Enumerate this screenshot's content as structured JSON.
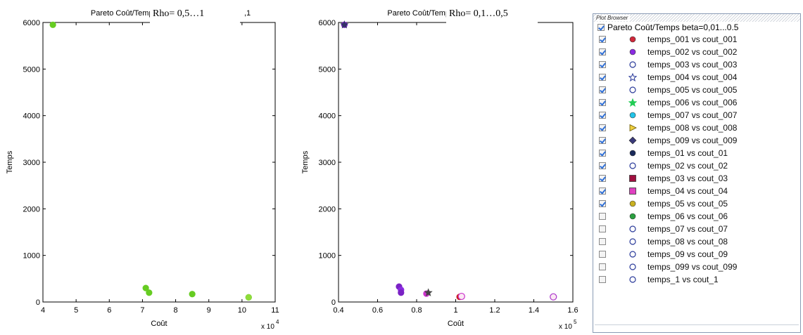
{
  "chart_data": [
    {
      "type": "scatter",
      "title": "Pareto Coût/Temps",
      "overlay_label": "Rho= 0,5…1",
      "title_tail": ",1",
      "xlabel": "Coût",
      "ylabel": "Temps",
      "x_exponent_label": "x 10",
      "x_exponent_power": "4",
      "xlim": [
        4,
        11
      ],
      "ylim": [
        0,
        6000
      ],
      "xticks": [
        "4",
        "5",
        "6",
        "7",
        "8",
        "9",
        "10",
        "11"
      ],
      "yticks": [
        "0",
        "1000",
        "2000",
        "3000",
        "4000",
        "5000",
        "6000"
      ],
      "points": [
        {
          "x": 4.3,
          "y": 5950,
          "color": "#66cc22"
        },
        {
          "x": 7.1,
          "y": 300,
          "color": "#66cc22"
        },
        {
          "x": 7.2,
          "y": 200,
          "color": "#66cc22"
        },
        {
          "x": 8.5,
          "y": 170,
          "color": "#66cc22"
        },
        {
          "x": 10.2,
          "y": 100,
          "color": "#2a9d3a"
        },
        {
          "x": 10.2,
          "y": 100,
          "color": "#8fdc3a"
        }
      ]
    },
    {
      "type": "scatter",
      "title": "Pareto Coût/Temps",
      "overlay_label": "Rho= 0,1…0,5",
      "xlabel": "Coût",
      "ylabel": "Temps",
      "x_exponent_label": "x 10",
      "x_exponent_power": "5",
      "xlim": [
        0.4,
        1.6
      ],
      "ylim": [
        0,
        6000
      ],
      "xticks": [
        "0.4",
        "0.6",
        "0.8",
        "1",
        "1.2",
        "1.4",
        "1.6"
      ],
      "yticks": [
        "0",
        "1000",
        "2000",
        "3000",
        "4000",
        "5000",
        "6000"
      ],
      "points": [
        {
          "x": 0.43,
          "y": 5950,
          "color": "#7a22c4",
          "shape": "circle"
        },
        {
          "x": 0.43,
          "y": 5950,
          "color": "#333366",
          "shape": "star"
        },
        {
          "x": 0.71,
          "y": 330,
          "color": "#7a22c4",
          "shape": "circle"
        },
        {
          "x": 0.72,
          "y": 260,
          "color": "#8a2be2",
          "shape": "circle"
        },
        {
          "x": 0.72,
          "y": 200,
          "color": "#7a22c4",
          "shape": "circle"
        },
        {
          "x": 0.85,
          "y": 180,
          "color": "#cc33cc",
          "shape": "circle"
        },
        {
          "x": 0.86,
          "y": 200,
          "color": "#444444",
          "shape": "star"
        },
        {
          "x": 1.02,
          "y": 110,
          "color": "#cc2222",
          "shape": "circle"
        },
        {
          "x": 1.03,
          "y": 120,
          "color": "#cc33cc",
          "shape": "ring"
        },
        {
          "x": 1.5,
          "y": 110,
          "color": "#aa33cc",
          "shape": "ring"
        }
      ]
    }
  ],
  "plot_browser": {
    "title": "Plot Browser",
    "group": {
      "label": "Pareto Coût/Temps  beta=0,01...0.5",
      "checked": true
    },
    "items": [
      {
        "label": "temps_001 vs cout_001",
        "checked": true,
        "marker": "filled-circle",
        "color": "#d0283a"
      },
      {
        "label": "temps_002 vs cout_002",
        "checked": true,
        "marker": "filled-circle",
        "color": "#8a2be2"
      },
      {
        "label": "temps_003 vs cout_003",
        "checked": true,
        "marker": "open-circle",
        "color": "#2a3a9a"
      },
      {
        "label": "temps_004 vs cout_004",
        "checked": true,
        "marker": "open-star",
        "color": "#2a3a9a"
      },
      {
        "label": "temps_005 vs cout_005",
        "checked": true,
        "marker": "open-circle",
        "color": "#2a3a9a"
      },
      {
        "label": "temps_006 vs cout_006",
        "checked": true,
        "marker": "filled-star",
        "color": "#22cc55"
      },
      {
        "label": "temps_007 vs cout_007",
        "checked": true,
        "marker": "filled-circle",
        "color": "#22c4e8"
      },
      {
        "label": "temps_008 vs cout_008",
        "checked": true,
        "marker": "triangle-right",
        "color": "#f0d040"
      },
      {
        "label": "temps_009 vs cout_009",
        "checked": true,
        "marker": "filled-diamond",
        "color": "#3a3a7a"
      },
      {
        "label": "temps_01 vs cout_01",
        "checked": true,
        "marker": "filled-circle",
        "color": "#1a2a5a"
      },
      {
        "label": "temps_02 vs cout_02",
        "checked": true,
        "marker": "open-circle",
        "color": "#2a3a9a"
      },
      {
        "label": "temps_03 vs cout_03",
        "checked": true,
        "marker": "filled-square",
        "color": "#a01040"
      },
      {
        "label": "temps_04 vs cout_04",
        "checked": true,
        "marker": "filled-square",
        "color": "#e040c0"
      },
      {
        "label": "temps_05 vs cout_05",
        "checked": true,
        "marker": "filled-circle",
        "color": "#c8b020"
      },
      {
        "label": "temps_06 vs cout_06",
        "checked": false,
        "marker": "filled-circle",
        "color": "#2aa040"
      },
      {
        "label": "temps_07 vs cout_07",
        "checked": false,
        "marker": "open-circle",
        "color": "#2a3a9a"
      },
      {
        "label": "temps_08 vs cout_08",
        "checked": false,
        "marker": "open-circle",
        "color": "#2a3a9a"
      },
      {
        "label": "temps_09 vs cout_09",
        "checked": false,
        "marker": "open-circle",
        "color": "#2a3a9a"
      },
      {
        "label": "temps_099 vs cout_099",
        "checked": false,
        "marker": "open-circle",
        "color": "#2a3a9a"
      },
      {
        "label": "temps_1 vs cout_1",
        "checked": false,
        "marker": "open-circle",
        "color": "#2a3a9a"
      }
    ]
  }
}
